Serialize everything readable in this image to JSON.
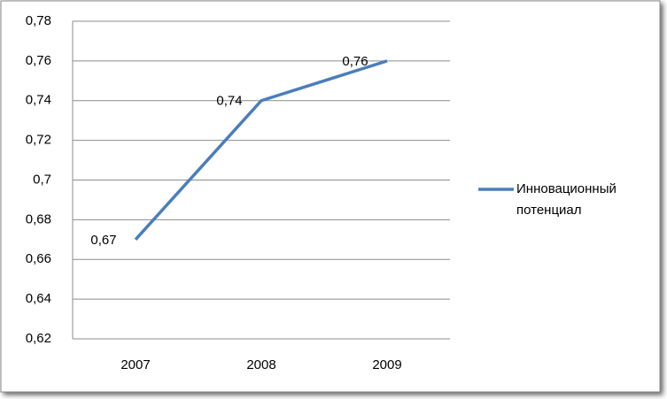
{
  "chart_data": {
    "type": "line",
    "categories": [
      "2007",
      "2008",
      "2009"
    ],
    "series": [
      {
        "name": "Инновационный потенциал",
        "color": "#4a7ebb",
        "values": [
          0.67,
          0.74,
          0.76
        ],
        "value_labels": [
          "0,67",
          "0,74",
          "0,76"
        ]
      }
    ],
    "ylim": [
      0.62,
      0.78
    ],
    "yticks": [
      {
        "value": 0.62,
        "label": "0,62"
      },
      {
        "value": 0.64,
        "label": "0,64"
      },
      {
        "value": 0.66,
        "label": "0,66"
      },
      {
        "value": 0.68,
        "label": "0,68"
      },
      {
        "value": 0.7,
        "label": "0,7"
      },
      {
        "value": 0.72,
        "label": "0,72"
      },
      {
        "value": 0.74,
        "label": "0,74"
      },
      {
        "value": 0.76,
        "label": "0,76"
      },
      {
        "value": 0.78,
        "label": "0,78"
      }
    ],
    "grid": true,
    "legend": "right"
  }
}
